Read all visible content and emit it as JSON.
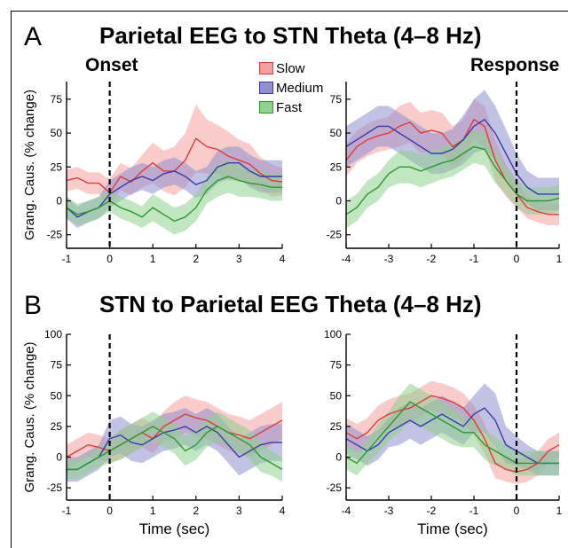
{
  "panels": {
    "A": {
      "letter": "A",
      "title": "Parietal EEG to STN Theta (4–8 Hz)"
    },
    "B": {
      "letter": "B",
      "title": "STN to Parietal EEG Theta (4–8 Hz)"
    }
  },
  "subtitles": {
    "onset": "Onset",
    "response": "Response"
  },
  "legend": [
    {
      "name": "Slow",
      "color": "#e03a3a",
      "fill": "#f4a0a0"
    },
    {
      "name": "Medium",
      "color": "#3a3aa8",
      "fill": "#9090d0"
    },
    {
      "name": "Fast",
      "color": "#2a9a2a",
      "fill": "#90d090"
    }
  ],
  "chart_data": [
    {
      "type": "line",
      "id": "A-onset",
      "ylabel": "Grang. Caus. (% change)",
      "xlabel": "",
      "xlim": [
        -1,
        4
      ],
      "ylim": [
        -35,
        88
      ],
      "xticks": [
        -1,
        0,
        1,
        2,
        3,
        4
      ],
      "yticks": [
        -25,
        0,
        25,
        50,
        75
      ],
      "vline": 0,
      "x": [
        -1,
        -0.75,
        -0.5,
        -0.25,
        0,
        0.25,
        0.5,
        0.75,
        1,
        1.25,
        1.5,
        1.75,
        2,
        2.25,
        2.5,
        2.75,
        3,
        3.25,
        3.5,
        3.75,
        4
      ],
      "series": [
        {
          "name": "Slow",
          "mean": [
            15,
            17,
            13,
            13,
            6,
            18,
            14,
            22,
            28,
            22,
            22,
            30,
            46,
            40,
            38,
            33,
            30,
            27,
            20,
            15,
            14
          ],
          "sem": [
            8,
            8,
            8,
            8,
            10,
            10,
            10,
            12,
            15,
            15,
            18,
            20,
            25,
            20,
            18,
            18,
            15,
            15,
            12,
            12,
            10
          ]
        },
        {
          "name": "Medium",
          "mean": [
            -5,
            -12,
            -8,
            -5,
            5,
            10,
            15,
            18,
            15,
            20,
            22,
            18,
            12,
            15,
            25,
            28,
            28,
            22,
            18,
            18,
            18
          ],
          "sem": [
            8,
            8,
            8,
            8,
            10,
            10,
            10,
            10,
            10,
            10,
            10,
            10,
            10,
            10,
            12,
            12,
            12,
            12,
            12,
            12,
            12
          ]
        },
        {
          "name": "Fast",
          "mean": [
            -5,
            -10,
            -8,
            -5,
            0,
            -5,
            -8,
            -12,
            -5,
            -10,
            -15,
            -12,
            -5,
            8,
            15,
            18,
            15,
            13,
            12,
            10,
            10
          ],
          "sem": [
            8,
            8,
            8,
            8,
            8,
            8,
            8,
            8,
            10,
            10,
            10,
            10,
            10,
            10,
            12,
            12,
            12,
            10,
            10,
            10,
            10
          ]
        }
      ]
    },
    {
      "type": "line",
      "id": "A-response",
      "ylabel": "",
      "xlabel": "",
      "xlim": [
        -4,
        1
      ],
      "ylim": [
        -35,
        88
      ],
      "xticks": [
        -4,
        -3,
        -2,
        -1,
        0,
        1
      ],
      "yticks": [
        -25,
        0,
        25,
        50,
        75
      ],
      "vline": 0,
      "x": [
        -4,
        -3.75,
        -3.5,
        -3.25,
        -3,
        -2.75,
        -2.5,
        -2.25,
        -2,
        -1.75,
        -1.5,
        -1.25,
        -1,
        -0.75,
        -0.5,
        -0.25,
        0,
        0.25,
        0.5,
        0.75,
        1
      ],
      "series": [
        {
          "name": "Slow",
          "mean": [
            30,
            40,
            45,
            48,
            50,
            55,
            58,
            50,
            52,
            50,
            40,
            45,
            60,
            55,
            30,
            15,
            5,
            -5,
            -8,
            -10,
            -10
          ],
          "sem": [
            12,
            12,
            12,
            12,
            12,
            15,
            15,
            15,
            15,
            15,
            15,
            15,
            15,
            15,
            15,
            12,
            10,
            8,
            8,
            8,
            8
          ]
        },
        {
          "name": "Medium",
          "mean": [
            40,
            45,
            50,
            55,
            55,
            50,
            45,
            40,
            35,
            35,
            38,
            45,
            55,
            60,
            50,
            35,
            20,
            10,
            5,
            5,
            5
          ],
          "sem": [
            15,
            15,
            15,
            15,
            15,
            15,
            15,
            15,
            15,
            15,
            15,
            18,
            20,
            22,
            20,
            18,
            15,
            12,
            12,
            12,
            12
          ]
        },
        {
          "name": "Fast",
          "mean": [
            -10,
            -5,
            5,
            10,
            20,
            25,
            25,
            22,
            25,
            28,
            30,
            35,
            40,
            38,
            25,
            15,
            5,
            0,
            0,
            0,
            2
          ],
          "sem": [
            10,
            10,
            10,
            10,
            10,
            12,
            12,
            12,
            12,
            12,
            12,
            12,
            12,
            12,
            12,
            10,
            10,
            10,
            10,
            10,
            10
          ]
        }
      ]
    },
    {
      "type": "line",
      "id": "B-onset",
      "ylabel": "Grang. Caus. (% change)",
      "xlabel": "Time (sec)",
      "xlim": [
        -1,
        4
      ],
      "ylim": [
        -35,
        100
      ],
      "xticks": [
        -1,
        0,
        1,
        2,
        3,
        4
      ],
      "yticks": [
        -25,
        0,
        25,
        50,
        75,
        100
      ],
      "vline": 0,
      "x": [
        -1,
        -0.75,
        -0.5,
        -0.25,
        0,
        0.25,
        0.5,
        0.75,
        1,
        1.25,
        1.5,
        1.75,
        2,
        2.25,
        2.5,
        2.75,
        3,
        3.25,
        3.5,
        3.75,
        4
      ],
      "series": [
        {
          "name": "Slow",
          "mean": [
            0,
            5,
            10,
            8,
            5,
            10,
            15,
            20,
            15,
            25,
            30,
            35,
            32,
            30,
            25,
            20,
            18,
            15,
            20,
            25,
            30
          ],
          "sem": [
            10,
            10,
            10,
            10,
            10,
            12,
            12,
            12,
            12,
            12,
            15,
            15,
            15,
            15,
            15,
            15,
            15,
            15,
            15,
            15,
            15
          ]
        },
        {
          "name": "Medium",
          "mean": [
            -10,
            -10,
            -5,
            0,
            15,
            18,
            12,
            10,
            15,
            20,
            22,
            25,
            20,
            25,
            20,
            10,
            0,
            5,
            10,
            12,
            12
          ],
          "sem": [
            10,
            10,
            10,
            10,
            15,
            15,
            15,
            15,
            15,
            15,
            15,
            15,
            15,
            15,
            15,
            15,
            15,
            15,
            15,
            15,
            15
          ]
        },
        {
          "name": "Fast",
          "mean": [
            -10,
            -10,
            -5,
            0,
            5,
            10,
            15,
            20,
            25,
            20,
            15,
            5,
            10,
            20,
            25,
            20,
            15,
            10,
            0,
            -5,
            -10
          ],
          "sem": [
            8,
            8,
            8,
            8,
            10,
            12,
            12,
            12,
            12,
            12,
            12,
            12,
            12,
            12,
            12,
            12,
            12,
            12,
            12,
            10,
            10
          ]
        }
      ]
    },
    {
      "type": "line",
      "id": "B-response",
      "ylabel": "",
      "xlabel": "Time (sec)",
      "xlim": [
        -4,
        1
      ],
      "ylim": [
        -35,
        100
      ],
      "xticks": [
        -4,
        -3,
        -2,
        -1,
        0,
        1
      ],
      "yticks": [
        -25,
        0,
        25,
        50,
        75,
        100
      ],
      "vline": 0,
      "x": [
        -4,
        -3.75,
        -3.5,
        -3.25,
        -3,
        -2.75,
        -2.5,
        -2.25,
        -2,
        -1.75,
        -1.5,
        -1.25,
        -1,
        -0.75,
        -0.5,
        -0.25,
        0,
        0.25,
        0.5,
        0.75,
        1
      ],
      "series": [
        {
          "name": "Slow",
          "mean": [
            20,
            15,
            20,
            30,
            35,
            38,
            40,
            45,
            50,
            48,
            45,
            40,
            30,
            15,
            -5,
            -10,
            -12,
            -10,
            -5,
            5,
            10
          ],
          "sem": [
            12,
            12,
            12,
            12,
            12,
            12,
            12,
            12,
            12,
            12,
            12,
            12,
            12,
            12,
            12,
            10,
            10,
            10,
            10,
            10,
            10
          ]
        },
        {
          "name": "Medium",
          "mean": [
            15,
            10,
            5,
            10,
            20,
            25,
            30,
            25,
            30,
            35,
            30,
            25,
            35,
            40,
            30,
            10,
            5,
            0,
            -5,
            -5,
            -5
          ],
          "sem": [
            12,
            12,
            12,
            12,
            12,
            15,
            15,
            15,
            15,
            15,
            15,
            15,
            15,
            20,
            22,
            15,
            12,
            10,
            10,
            10,
            10
          ]
        },
        {
          "name": "Fast",
          "mean": [
            0,
            -5,
            5,
            15,
            25,
            35,
            45,
            40,
            35,
            30,
            25,
            20,
            20,
            10,
            5,
            0,
            -5,
            -5,
            -5,
            -5,
            -5
          ],
          "sem": [
            10,
            10,
            10,
            12,
            12,
            15,
            15,
            15,
            15,
            15,
            15,
            12,
            12,
            12,
            12,
            10,
            10,
            10,
            10,
            10,
            10
          ]
        }
      ]
    }
  ]
}
